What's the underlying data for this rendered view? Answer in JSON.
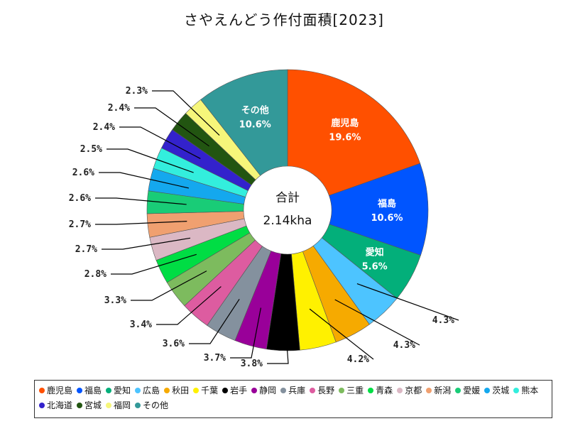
{
  "chart_data": {
    "type": "pie",
    "title": "さやえんどう作付面積[2023]",
    "center_label": "合計",
    "center_value": "2.14kha",
    "slices": [
      {
        "name": "鹿児島",
        "value": 19.6,
        "label": "19.6%",
        "color": "#ff5000"
      },
      {
        "name": "福島",
        "value": 10.6,
        "label": "10.6%",
        "color": "#0055ff"
      },
      {
        "name": "愛知",
        "value": 5.6,
        "label": "5.6%",
        "color": "#03af7a"
      },
      {
        "name": "広島",
        "value": 4.3,
        "label": "4.3%",
        "color": "#4dc4ff"
      },
      {
        "name": "秋田",
        "value": 4.3,
        "label": "4.3%",
        "color": "#f6aa00"
      },
      {
        "name": "千葉",
        "value": 4.2,
        "label": "4.2%",
        "color": "#fff100"
      },
      {
        "name": "岩手",
        "value": 3.8,
        "label": "3.8%",
        "color": "#000000"
      },
      {
        "name": "静岡",
        "value": 3.7,
        "label": "3.7%",
        "color": "#990099"
      },
      {
        "name": "兵庫",
        "value": 3.6,
        "label": "3.6%",
        "color": "#84919e"
      },
      {
        "name": "長野",
        "value": 3.4,
        "label": "3.4%",
        "color": "#dd5ca0"
      },
      {
        "name": "三重",
        "value": 3.3,
        "label": "3.3%",
        "color": "#7dbb5e"
      },
      {
        "name": "青森",
        "value": 2.8,
        "label": "2.8%",
        "color": "#00dd44"
      },
      {
        "name": "京都",
        "value": 2.7,
        "label": "2.7%",
        "color": "#dbb8c4"
      },
      {
        "name": "新潟",
        "value": 2.7,
        "label": "2.7%",
        "color": "#f0a070"
      },
      {
        "name": "愛媛",
        "value": 2.6,
        "label": "2.6%",
        "color": "#19cc77"
      },
      {
        "name": "茨城",
        "value": 2.6,
        "label": "2.6%",
        "color": "#14a8ee"
      },
      {
        "name": "熊本",
        "value": 2.5,
        "label": "2.5%",
        "color": "#33eedd"
      },
      {
        "name": "北海道",
        "value": 2.4,
        "label": "2.4%",
        "color": "#3322cc"
      },
      {
        "name": "宮城",
        "value": 2.4,
        "label": "2.4%",
        "color": "#225511"
      },
      {
        "name": "福岡",
        "value": 2.3,
        "label": "2.3%",
        "color": "#f6f67a"
      },
      {
        "name": "その他",
        "value": 10.6,
        "label": "10.6%",
        "color": "#339999"
      }
    ],
    "legend_position": "bottom"
  }
}
